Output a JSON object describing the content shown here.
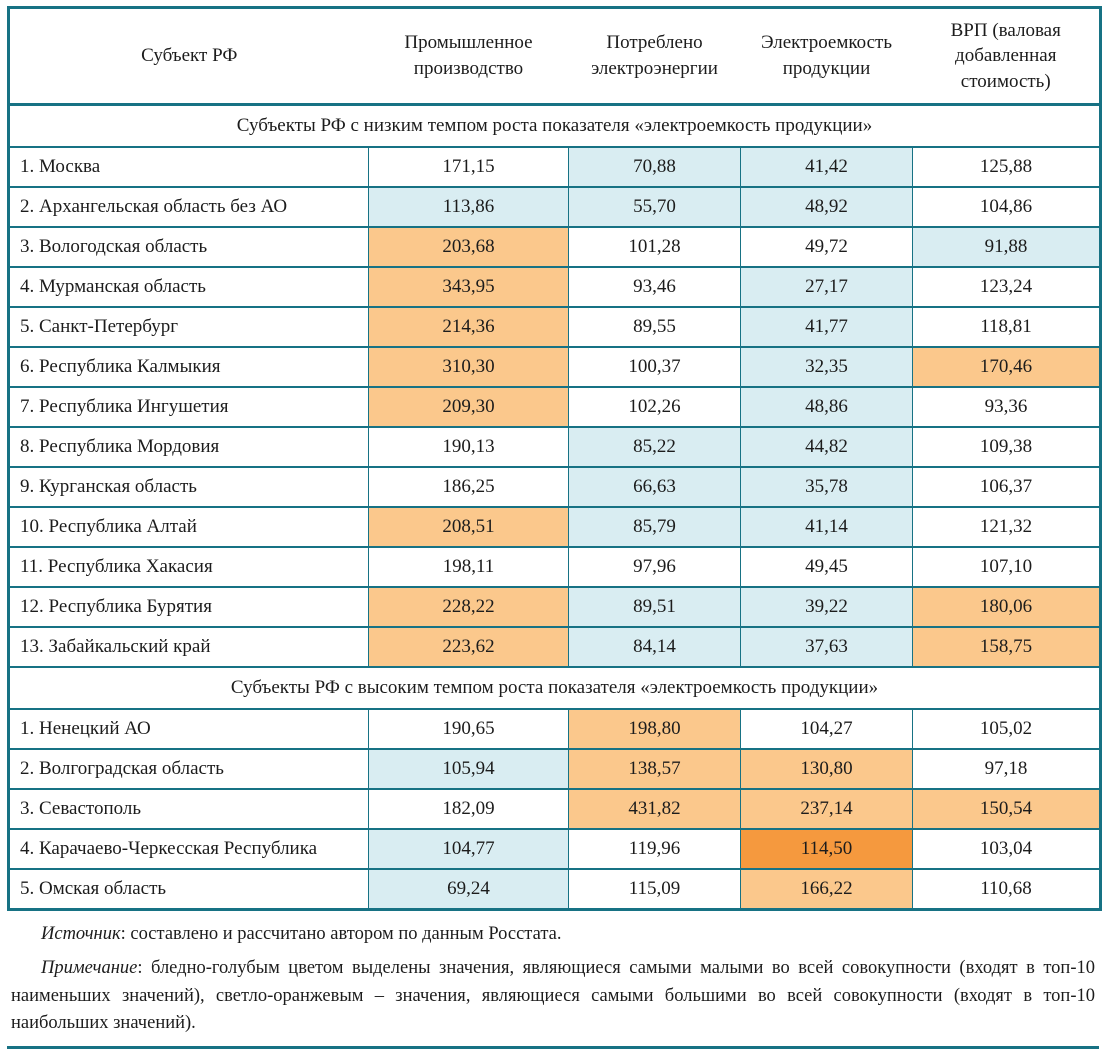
{
  "colors": {
    "border_teal": "#177284",
    "highlight_min_blue": "#D9EDF2",
    "highlight_max_orange": "#FBC88C",
    "highlight_max_dark_orange": "#F5993E"
  },
  "table": {
    "columns": [
      "Субъект РФ",
      "Промышленное производство",
      "Потреблено электроэнергии",
      "Электроемкость продукции",
      "ВРП (валовая добавленная стоимость)"
    ],
    "sections": [
      {
        "title": "Субъекты РФ с низким темпом роста показателя «электроемкость продукции»",
        "rows": [
          {
            "name": "1. Москва",
            "values": [
              "171,15",
              "70,88",
              "41,42",
              "125,88"
            ],
            "hl": [
              "none",
              "min",
              "min",
              "none"
            ]
          },
          {
            "name": "2. Архангельская область без АО",
            "values": [
              "113,86",
              "55,70",
              "48,92",
              "104,86"
            ],
            "hl": [
              "min",
              "min",
              "min",
              "none"
            ]
          },
          {
            "name": "3. Вологодская область",
            "values": [
              "203,68",
              "101,28",
              "49,72",
              "91,88"
            ],
            "hl": [
              "max",
              "none",
              "none",
              "min"
            ]
          },
          {
            "name": "4. Мурманская область",
            "values": [
              "343,95",
              "93,46",
              "27,17",
              "123,24"
            ],
            "hl": [
              "max",
              "none",
              "min",
              "none"
            ]
          },
          {
            "name": "5. Санкт-Петербург",
            "values": [
              "214,36",
              "89,55",
              "41,77",
              "118,81"
            ],
            "hl": [
              "max",
              "none",
              "min",
              "none"
            ]
          },
          {
            "name": "6. Республика Калмыкия",
            "values": [
              "310,30",
              "100,37",
              "32,35",
              "170,46"
            ],
            "hl": [
              "max",
              "none",
              "min",
              "max"
            ]
          },
          {
            "name": "7. Республика Ингушетия",
            "values": [
              "209,30",
              "102,26",
              "48,86",
              "93,36"
            ],
            "hl": [
              "max",
              "none",
              "min",
              "none"
            ]
          },
          {
            "name": "8. Республика Мордовия",
            "values": [
              "190,13",
              "85,22",
              "44,82",
              "109,38"
            ],
            "hl": [
              "none",
              "min",
              "min",
              "none"
            ]
          },
          {
            "name": "9. Курганская область",
            "values": [
              "186,25",
              "66,63",
              "35,78",
              "106,37"
            ],
            "hl": [
              "none",
              "min",
              "min",
              "none"
            ]
          },
          {
            "name": "10. Республика Алтай",
            "values": [
              "208,51",
              "85,79",
              "41,14",
              "121,32"
            ],
            "hl": [
              "max",
              "min",
              "min",
              "none"
            ]
          },
          {
            "name": "11. Республика Хакасия",
            "values": [
              "198,11",
              "97,96",
              "49,45",
              "107,10"
            ],
            "hl": [
              "none",
              "none",
              "none",
              "none"
            ]
          },
          {
            "name": "12. Республика Бурятия",
            "values": [
              "228,22",
              "89,51",
              "39,22",
              "180,06"
            ],
            "hl": [
              "max",
              "min",
              "min",
              "max"
            ]
          },
          {
            "name": "13. Забайкальский край",
            "values": [
              "223,62",
              "84,14",
              "37,63",
              "158,75"
            ],
            "hl": [
              "max",
              "min",
              "min",
              "max"
            ]
          }
        ]
      },
      {
        "title": "Субъекты РФ с высоким темпом роста показателя «электроемкость продукции»",
        "rows": [
          {
            "name": "1. Ненецкий АО",
            "values": [
              "190,65",
              "198,80",
              "104,27",
              "105,02"
            ],
            "hl": [
              "none",
              "max",
              "none",
              "none"
            ]
          },
          {
            "name": "2. Волгоградская область",
            "values": [
              "105,94",
              "138,57",
              "130,80",
              "97,18"
            ],
            "hl": [
              "min",
              "max",
              "max",
              "none"
            ]
          },
          {
            "name": "3. Севастополь",
            "values": [
              "182,09",
              "431,82",
              "237,14",
              "150,54"
            ],
            "hl": [
              "none",
              "max",
              "max",
              "max"
            ]
          },
          {
            "name": "4. Карачаево-Черкесская Республика",
            "values": [
              "104,77",
              "119,96",
              "114,50",
              "103,04"
            ],
            "hl": [
              "min",
              "none",
              "maxdark",
              "none"
            ]
          },
          {
            "name": "5. Омская область",
            "values": [
              "69,24",
              "115,09",
              "166,22",
              "110,68"
            ],
            "hl": [
              "min",
              "none",
              "max",
              "none"
            ]
          }
        ]
      }
    ]
  },
  "notes": {
    "source": {
      "label": "Источник",
      "text": ": составлено и рассчитано автором по данным Росстата."
    },
    "remark": {
      "label": "Примечание",
      "text": ": бледно-голубым цветом выделены значения, являющиеся самыми малыми во всей совокупности (входят в топ-10 наименьших значений), светло-оранжевым – значения, являющиеся самыми большими во всей совокупности (входят в топ-10 наибольших значений)."
    }
  }
}
